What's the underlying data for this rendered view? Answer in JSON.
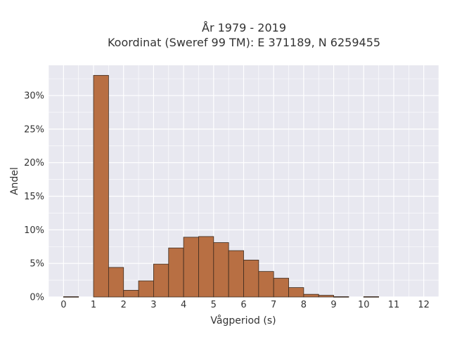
{
  "chart_data": {
    "type": "bar",
    "title_lines": [
      "År 1979 - 2019",
      "Koordinat (Sweref 99 TM): E 371189, N 6259455"
    ],
    "xlabel": "Vågperiod (s)",
    "ylabel": "Andel",
    "xlim": [
      -0.5,
      12.5
    ],
    "ylim": [
      0,
      34.5
    ],
    "x_ticks": [
      "0",
      "1",
      "2",
      "3",
      "4",
      "5",
      "6",
      "7",
      "8",
      "9",
      "10",
      "11",
      "12"
    ],
    "y_ticks": [
      "0%",
      "5%",
      "10%",
      "15%",
      "20%",
      "25%",
      "30%"
    ],
    "bin_width": 0.5,
    "bins": [
      {
        "start": 0.0,
        "value": 0.05
      },
      {
        "start": 0.5,
        "value": 0
      },
      {
        "start": 1.0,
        "value": 33.0
      },
      {
        "start": 1.5,
        "value": 4.4
      },
      {
        "start": 2.0,
        "value": 1.0
      },
      {
        "start": 2.5,
        "value": 2.4
      },
      {
        "start": 3.0,
        "value": 4.9
      },
      {
        "start": 3.5,
        "value": 7.3
      },
      {
        "start": 4.0,
        "value": 8.9
      },
      {
        "start": 4.5,
        "value": 9.0
      },
      {
        "start": 5.0,
        "value": 8.1
      },
      {
        "start": 5.5,
        "value": 6.9
      },
      {
        "start": 6.0,
        "value": 5.5
      },
      {
        "start": 6.5,
        "value": 3.8
      },
      {
        "start": 7.0,
        "value": 2.8
      },
      {
        "start": 7.5,
        "value": 1.4
      },
      {
        "start": 8.0,
        "value": 0.4
      },
      {
        "start": 8.5,
        "value": 0.25
      },
      {
        "start": 9.0,
        "value": 0.05
      },
      {
        "start": 9.5,
        "value": 0
      },
      {
        "start": 10.0,
        "value": 0.05
      }
    ],
    "grid": true,
    "colors": {
      "bar_fill": "#b86f43",
      "bar_stroke": "#3a2a1e",
      "plot_background": "#e8e8f0",
      "grid": "#ffffff"
    }
  }
}
